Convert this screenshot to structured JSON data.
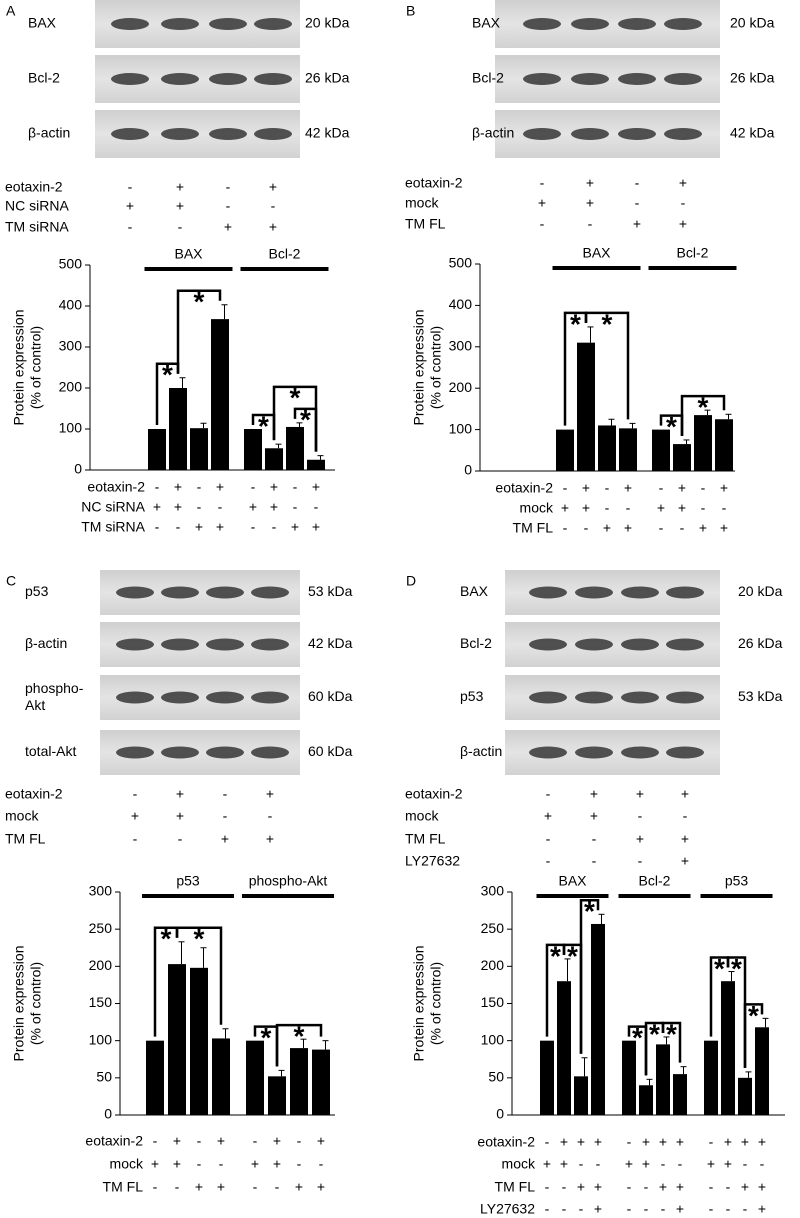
{
  "panels": [
    {
      "label": "A",
      "blots": [
        {
          "name": "BAX",
          "size": "20 kDa"
        },
        {
          "name": "Bcl-2",
          "size": "26 kDa"
        },
        {
          "name": "β-actin",
          "size": "42 kDa"
        }
      ],
      "treatments": [
        {
          "name": "eotaxin-2",
          "signs": [
            "-",
            "+",
            "-",
            "+"
          ]
        },
        {
          "name": "NC siRNA",
          "signs": [
            "+",
            "+",
            "-",
            "-"
          ]
        },
        {
          "name": "TM siRNA",
          "signs": [
            "-",
            "-",
            "+",
            "+"
          ]
        }
      ]
    },
    {
      "label": "B",
      "blots": [
        {
          "name": "BAX",
          "size": "20 kDa"
        },
        {
          "name": "Bcl-2",
          "size": "26 kDa"
        },
        {
          "name": "β-actin",
          "size": "42 kDa"
        }
      ],
      "treatments": [
        {
          "name": "eotaxin-2",
          "signs": [
            "-",
            "+",
            "-",
            "+"
          ]
        },
        {
          "name": "mock",
          "signs": [
            "+",
            "+",
            "-",
            "-"
          ]
        },
        {
          "name": "TM FL",
          "signs": [
            "-",
            "-",
            "+",
            "+"
          ]
        }
      ]
    },
    {
      "label": "C",
      "blots": [
        {
          "name": "p53",
          "size": "53 kDa"
        },
        {
          "name": "β-actin",
          "size": "42 kDa"
        },
        {
          "name": [
            "phospho-",
            "Akt"
          ],
          "size": "60 kDa"
        },
        {
          "name": "total-Akt",
          "size": "60 kDa"
        }
      ],
      "treatments": [
        {
          "name": "eotaxin-2",
          "signs": [
            "-",
            "+",
            "-",
            "+"
          ]
        },
        {
          "name": "mock",
          "signs": [
            "+",
            "+",
            "-",
            "-"
          ]
        },
        {
          "name": "TM FL",
          "signs": [
            "-",
            "-",
            "+",
            "+"
          ]
        }
      ]
    },
    {
      "label": "D",
      "blots": [
        {
          "name": "BAX",
          "size": "20 kDa"
        },
        {
          "name": "Bcl-2",
          "size": "26 kDa"
        },
        {
          "name": "p53",
          "size": "53 kDa"
        },
        {
          "name": "β-actin",
          "size": ""
        }
      ],
      "treatments": [
        {
          "name": "eotaxin-2",
          "signs": [
            "-",
            "+",
            "+",
            "+"
          ]
        },
        {
          "name": "mock",
          "signs": [
            "+",
            "+",
            "-",
            "-"
          ]
        },
        {
          "name": "TM FL",
          "signs": [
            "-",
            "-",
            "+",
            "+"
          ]
        },
        {
          "name": "LY27632",
          "signs": [
            "-",
            "-",
            "-",
            "+"
          ]
        }
      ]
    }
  ],
  "chart_data": [
    {
      "type": "bar",
      "y_label": [
        "Protein expression",
        "(% of control)"
      ],
      "ylim": [
        0,
        500
      ],
      "yticks": [
        0,
        100,
        200,
        300,
        400,
        500
      ],
      "color": "#000000",
      "series": [
        {
          "name": "BAX",
          "values": [
            100,
            200,
            102,
            368
          ],
          "errors": [
            0,
            25,
            12,
            35
          ]
        },
        {
          "name": "Bcl-2",
          "values": [
            100,
            53,
            105,
            25
          ],
          "errors": [
            0,
            10,
            10,
            10
          ]
        }
      ],
      "treatments": [
        {
          "name": "eotaxin-2",
          "signs": [
            "-",
            "+",
            "-",
            "+"
          ]
        },
        {
          "name": "NC siRNA",
          "signs": [
            "+",
            "+",
            "-",
            "-"
          ]
        },
        {
          "name": "TM siRNA",
          "signs": [
            "-",
            "-",
            "+",
            "+"
          ]
        }
      ],
      "brackets": [
        {
          "series": 0,
          "from": 0,
          "to": 1,
          "label": "*"
        },
        {
          "series": 0,
          "from": 1,
          "to": 3,
          "label": "*"
        },
        {
          "series": 1,
          "from": 0,
          "to": 1,
          "label": "*"
        },
        {
          "series": 1,
          "from": 2,
          "to": 3,
          "label": "*"
        },
        {
          "series": 1,
          "from": 1,
          "to": 3,
          "label": "*"
        }
      ]
    },
    {
      "type": "bar",
      "y_label": [
        "Protein expression",
        "(% of control)"
      ],
      "ylim": [
        0,
        500
      ],
      "yticks": [
        0,
        100,
        200,
        300,
        400,
        500
      ],
      "color": "#000000",
      "series": [
        {
          "name": "BAX",
          "values": [
            100,
            310,
            110,
            103
          ],
          "errors": [
            0,
            38,
            15,
            12
          ]
        },
        {
          "name": "Bcl-2",
          "values": [
            100,
            65,
            135,
            125
          ],
          "errors": [
            0,
            10,
            12,
            12
          ]
        }
      ],
      "treatments": [
        {
          "name": "eotaxin-2",
          "signs": [
            "-",
            "+",
            "-",
            "+"
          ]
        },
        {
          "name": "mock",
          "signs": [
            "+",
            "+",
            "-",
            "-"
          ]
        },
        {
          "name": "TM FL",
          "signs": [
            "-",
            "-",
            "+",
            "+"
          ]
        }
      ],
      "brackets": [
        {
          "series": 0,
          "from": 0,
          "to": 1,
          "label": "*"
        },
        {
          "series": 0,
          "from": 1,
          "to": 3,
          "label": "*"
        },
        {
          "series": 1,
          "from": 0,
          "to": 1,
          "label": "*"
        },
        {
          "series": 1,
          "from": 1,
          "to": 3,
          "label": "*"
        }
      ]
    },
    {
      "type": "bar",
      "y_label": [
        "Protein expression",
        "(% of control)"
      ],
      "ylim": [
        0,
        300
      ],
      "yticks": [
        0,
        50,
        100,
        150,
        200,
        250,
        300
      ],
      "color": "#000000",
      "series": [
        {
          "name": "p53",
          "values": [
            100,
            203,
            198,
            103
          ],
          "errors": [
            0,
            30,
            27,
            13
          ]
        },
        {
          "name": "phospho-Akt",
          "values": [
            100,
            52,
            90,
            88
          ],
          "errors": [
            0,
            8,
            12,
            12
          ]
        }
      ],
      "treatments": [
        {
          "name": "eotaxin-2",
          "signs": [
            "-",
            "+",
            "-",
            "+"
          ]
        },
        {
          "name": "mock",
          "signs": [
            "+",
            "+",
            "-",
            "-"
          ]
        },
        {
          "name": "TM FL",
          "signs": [
            "-",
            "-",
            "+",
            "+"
          ]
        }
      ],
      "brackets": [
        {
          "series": 0,
          "from": 0,
          "to": 1,
          "label": "*"
        },
        {
          "series": 0,
          "from": 1,
          "to": 3,
          "label": "*"
        },
        {
          "series": 1,
          "from": 0,
          "to": 1,
          "label": "*"
        },
        {
          "series": 1,
          "from": 1,
          "to": 3,
          "label": "*"
        }
      ]
    },
    {
      "type": "bar",
      "y_label": [
        "Protein expression",
        "(% of control)"
      ],
      "ylim": [
        0,
        300
      ],
      "yticks": [
        0,
        50,
        100,
        150,
        200,
        250,
        300
      ],
      "color": "#000000",
      "series": [
        {
          "name": "BAX",
          "values": [
            100,
            180,
            52,
            257
          ],
          "errors": [
            0,
            30,
            25,
            13
          ]
        },
        {
          "name": "Bcl-2",
          "values": [
            100,
            40,
            95,
            55
          ],
          "errors": [
            0,
            8,
            10,
            10
          ]
        },
        {
          "name": "p53",
          "values": [
            100,
            180,
            50,
            118
          ],
          "errors": [
            0,
            13,
            8,
            12
          ]
        }
      ],
      "treatments": [
        {
          "name": "eotaxin-2",
          "signs": [
            "-",
            "+",
            "+",
            "+"
          ]
        },
        {
          "name": "mock",
          "signs": [
            "+",
            "+",
            "-",
            "-"
          ]
        },
        {
          "name": "TM FL",
          "signs": [
            "-",
            "-",
            "+",
            "+"
          ]
        },
        {
          "name": "LY27632",
          "signs": [
            "-",
            "-",
            "-",
            "+"
          ]
        }
      ],
      "brackets": [
        {
          "series": 0,
          "from": 0,
          "to": 1,
          "label": "*"
        },
        {
          "series": 0,
          "from": 1,
          "to": 2,
          "label": "*"
        },
        {
          "series": 0,
          "from": 2,
          "to": 3,
          "label": "*"
        },
        {
          "series": 1,
          "from": 0,
          "to": 1,
          "label": "*"
        },
        {
          "series": 1,
          "from": 1,
          "to": 2,
          "label": "*"
        },
        {
          "series": 1,
          "from": 2,
          "to": 3,
          "label": "*"
        },
        {
          "series": 2,
          "from": 0,
          "to": 1,
          "label": "*"
        },
        {
          "series": 2,
          "from": 1,
          "to": 2,
          "label": "*"
        },
        {
          "series": 2,
          "from": 2,
          "to": 3,
          "label": "*"
        }
      ]
    }
  ]
}
